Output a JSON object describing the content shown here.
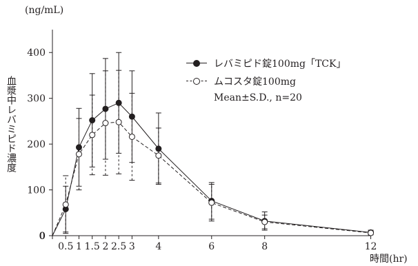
{
  "chart_data": {
    "type": "line",
    "unit_label": "(ng/mL)",
    "ylabel": "血漿中レバミピド濃度",
    "xlabel": "時間(hr)",
    "x": [
      0,
      0.5,
      1,
      1.5,
      2,
      2.5,
      3,
      4,
      6,
      8,
      12
    ],
    "xticks": [
      0,
      0.5,
      1,
      1.5,
      2,
      2.5,
      3,
      4,
      6,
      8,
      12
    ],
    "xtick_labels": [
      "0",
      "0.5",
      "1",
      "1.5",
      "2",
      "2.5",
      "3",
      "4",
      "6",
      "8",
      "12"
    ],
    "yticks": [
      0,
      100,
      200,
      300,
      400
    ],
    "ylim": [
      0,
      450
    ],
    "xlim": [
      0,
      13
    ],
    "legend_note": "Mean±S.D., n=20",
    "legend_position": "top-right",
    "series": [
      {
        "name": "レバミピド錠100mg「TCK」",
        "marker": "filled-circle",
        "line": "solid",
        "values": [
          0,
          58,
          193,
          252,
          277,
          290,
          260,
          190,
          76,
          32,
          7
        ],
        "sd": [
          0,
          50,
          85,
          102,
          110,
          110,
          100,
          78,
          40,
          20,
          5
        ]
      },
      {
        "name": "ムコスタ錠100mg",
        "marker": "open-circle",
        "line": "dashed",
        "values": [
          0,
          68,
          178,
          220,
          246,
          248,
          216,
          175,
          72,
          30,
          6
        ],
        "sd": [
          0,
          63,
          78,
          87,
          114,
          113,
          95,
          60,
          40,
          15,
          4
        ]
      }
    ]
  }
}
